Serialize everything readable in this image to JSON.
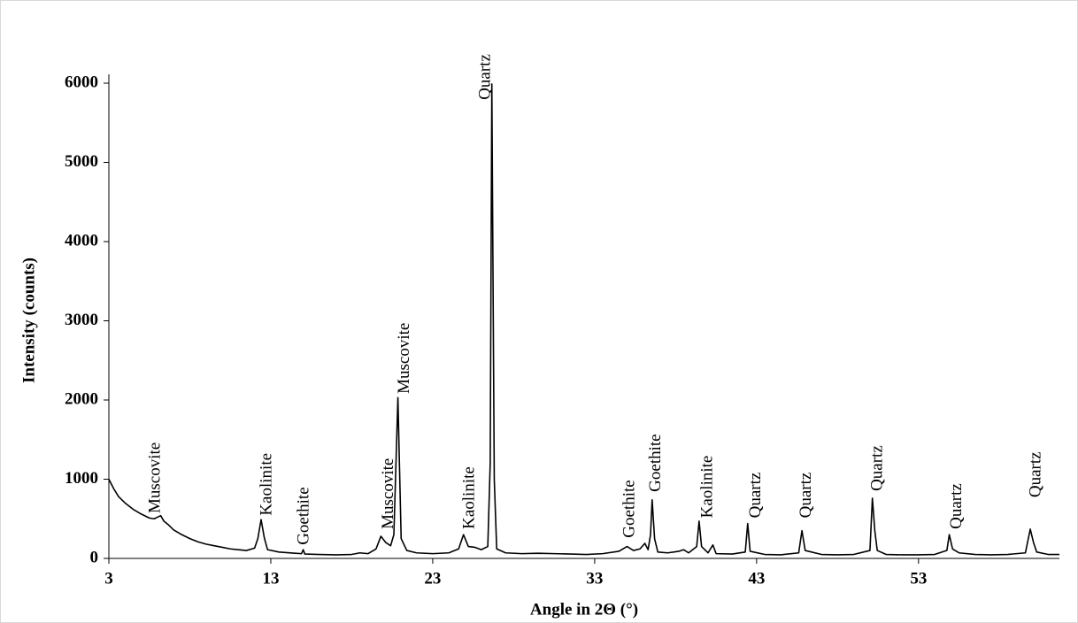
{
  "chart_data": {
    "type": "line",
    "x": [
      3,
      3.3,
      3.6,
      4,
      4.5,
      5,
      5.5,
      5.8,
      6.0,
      6.2,
      6.4,
      6.7,
      7,
      7.5,
      8,
      8.5,
      9,
      9.5,
      10,
      10.5,
      11,
      11.5,
      12,
      12.2,
      12.4,
      12.6,
      12.8,
      13.5,
      14.5,
      14.9,
      15.0,
      15.1,
      16,
      17,
      18,
      18.5,
      19,
      19.5,
      19.8,
      20.1,
      20.4,
      20.6,
      20.85,
      21.05,
      21.4,
      22,
      23,
      24,
      24.6,
      24.9,
      25.2,
      25.6,
      26.0,
      26.4,
      26.55,
      26.65,
      26.8,
      26.95,
      27.5,
      28.5,
      29.5,
      30.5,
      31.5,
      32.5,
      33.5,
      34.5,
      35.0,
      35.4,
      35.8,
      36.1,
      36.3,
      36.45,
      36.55,
      36.7,
      36.9,
      37.5,
      38.2,
      38.5,
      38.8,
      39.3,
      39.45,
      39.6,
      40.0,
      40.3,
      40.5,
      41.5,
      42.3,
      42.45,
      42.6,
      43.5,
      44.5,
      45.6,
      45.8,
      46.0,
      47,
      48,
      49,
      50.0,
      50.15,
      50.3,
      50.45,
      51,
      52,
      53,
      54,
      54.75,
      54.9,
      55.1,
      55.5,
      56.5,
      57.5,
      58.5,
      59.6,
      59.9,
      60.1,
      60.3,
      61,
      61.7
    ],
    "values": [
      1000,
      880,
      780,
      700,
      620,
      560,
      510,
      500,
      520,
      540,
      470,
      420,
      360,
      300,
      250,
      210,
      180,
      160,
      140,
      120,
      110,
      100,
      130,
      250,
      490,
      260,
      110,
      80,
      65,
      60,
      110,
      55,
      50,
      45,
      50,
      70,
      60,
      120,
      280,
      200,
      160,
      300,
      2030,
      250,
      100,
      70,
      60,
      70,
      120,
      300,
      150,
      140,
      110,
      150,
      1200,
      5990,
      1000,
      120,
      70,
      60,
      65,
      60,
      55,
      50,
      60,
      90,
      150,
      100,
      120,
      190,
      110,
      300,
      740,
      250,
      80,
      70,
      90,
      110,
      70,
      150,
      470,
      150,
      70,
      170,
      60,
      55,
      80,
      440,
      90,
      50,
      45,
      70,
      350,
      100,
      50,
      45,
      50,
      100,
      760,
      350,
      100,
      50,
      45,
      45,
      50,
      100,
      300,
      120,
      70,
      50,
      45,
      50,
      70,
      370,
      200,
      80,
      50,
      50
    ],
    "color": "#000000",
    "xlabel": "Angle in 2Θ (°)",
    "ylabel": "Intensity (counts)",
    "xlim": [
      3,
      61.7
    ],
    "ylim": [
      0,
      6000
    ],
    "xticks": [
      3,
      13,
      23,
      33,
      43,
      53
    ],
    "yticks": [
      0,
      1000,
      2000,
      3000,
      4000,
      5000,
      6000
    ],
    "grid": false,
    "annotations": [
      {
        "label": "Muscovite",
        "x": 5.9,
        "y": 570
      },
      {
        "label": "Kaolinite",
        "x": 12.8,
        "y": 540
      },
      {
        "label": "Goethite",
        "x": 15.1,
        "y": 170
      },
      {
        "label": "Muscovite",
        "x": 20.3,
        "y": 370
      },
      {
        "label": "Muscovite",
        "x": 21.3,
        "y": 2080
      },
      {
        "label": "Kaolinite",
        "x": 25.3,
        "y": 370
      },
      {
        "label": "Quartz",
        "x": 26.3,
        "y": 5790
      },
      {
        "label": "Goethite",
        "x": 35.2,
        "y": 260
      },
      {
        "label": "Goethite",
        "x": 36.8,
        "y": 840
      },
      {
        "label": "Kaolinite",
        "x": 40.0,
        "y": 510
      },
      {
        "label": "Quartz",
        "x": 43.0,
        "y": 510
      },
      {
        "label": "Quartz",
        "x": 46.1,
        "y": 510
      },
      {
        "label": "Quartz",
        "x": 50.5,
        "y": 850
      },
      {
        "label": "Quartz",
        "x": 55.4,
        "y": 370
      },
      {
        "label": "Quartz",
        "x": 60.3,
        "y": 770
      }
    ]
  }
}
